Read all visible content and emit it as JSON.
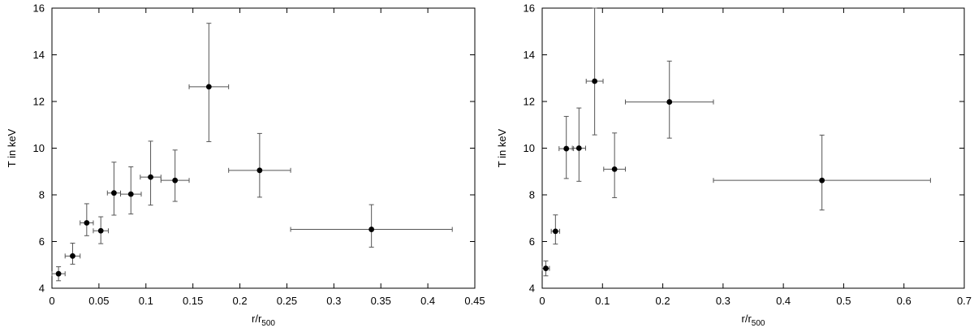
{
  "chart_data": [
    {
      "type": "scatter",
      "title": "",
      "xlabel": "r/r",
      "xlabel_sub": "500",
      "ylabel": "T in keV",
      "xlim": [
        0,
        0.45
      ],
      "ylim": [
        4,
        16
      ],
      "xticks": [
        0,
        0.05,
        0.1,
        0.15,
        0.2,
        0.25,
        0.3,
        0.35,
        0.4,
        0.45
      ],
      "xtick_labels": [
        "0",
        "0.05",
        "0.1",
        "0.15",
        "0.2",
        "0.25",
        "0.3",
        "0.35",
        "0.4",
        "0.45"
      ],
      "yticks": [
        4,
        6,
        8,
        10,
        12,
        14,
        16
      ],
      "ytick_labels": [
        "4",
        "6",
        "8",
        "10",
        "12",
        "14",
        "16"
      ],
      "grid": false,
      "points": [
        {
          "x": 0.007,
          "y": 4.62,
          "xerr": [
            0.007,
            0.007
          ],
          "yerr": [
            0.3,
            0.3
          ]
        },
        {
          "x": 0.022,
          "y": 5.38,
          "xerr": [
            0.008,
            0.008
          ],
          "yerr": [
            0.35,
            0.55
          ]
        },
        {
          "x": 0.037,
          "y": 6.8,
          "xerr": [
            0.007,
            0.007
          ],
          "yerr": [
            0.55,
            0.82
          ]
        },
        {
          "x": 0.052,
          "y": 6.46,
          "xerr": [
            0.008,
            0.008
          ],
          "yerr": [
            0.55,
            0.6
          ]
        },
        {
          "x": 0.066,
          "y": 8.08,
          "xerr": [
            0.007,
            0.007
          ],
          "yerr": [
            0.95,
            1.32
          ]
        },
        {
          "x": 0.084,
          "y": 8.03,
          "xerr": [
            0.011,
            0.011
          ],
          "yerr": [
            0.85,
            1.17
          ]
        },
        {
          "x": 0.105,
          "y": 8.76,
          "xerr": [
            0.011,
            0.011
          ],
          "yerr": [
            1.2,
            1.54
          ]
        },
        {
          "x": 0.131,
          "y": 8.62,
          "xerr": [
            0.015,
            0.015
          ],
          "yerr": [
            0.9,
            1.3
          ]
        },
        {
          "x": 0.167,
          "y": 12.63,
          "xerr": [
            0.021,
            0.021
          ],
          "yerr": [
            2.35,
            2.72
          ]
        },
        {
          "x": 0.221,
          "y": 9.05,
          "xerr": [
            0.033,
            0.033
          ],
          "yerr": [
            1.15,
            1.58
          ]
        },
        {
          "x": 0.34,
          "y": 6.52,
          "xerr": [
            0.086,
            0.086
          ],
          "yerr": [
            0.76,
            1.06
          ]
        }
      ]
    },
    {
      "type": "scatter",
      "title": "",
      "xlabel": "r/r",
      "xlabel_sub": "500",
      "ylabel": "T in keV",
      "xlim": [
        0,
        0.7
      ],
      "ylim": [
        4,
        16
      ],
      "xticks": [
        0,
        0.1,
        0.2,
        0.3,
        0.4,
        0.5,
        0.6,
        0.7
      ],
      "xtick_labels": [
        "0",
        "0.1",
        "0.2",
        "0.3",
        "0.4",
        "0.5",
        "0.6",
        "0.7"
      ],
      "yticks": [
        4,
        6,
        8,
        10,
        12,
        14,
        16
      ],
      "ytick_labels": [
        "4",
        "6",
        "8",
        "10",
        "12",
        "14",
        "16"
      ],
      "grid": false,
      "points": [
        {
          "x": 0.006,
          "y": 4.85,
          "xerr": [
            0.006,
            0.006
          ],
          "yerr": [
            0.32,
            0.32
          ]
        },
        {
          "x": 0.022,
          "y": 6.44,
          "xerr": [
            0.007,
            0.007
          ],
          "yerr": [
            0.55,
            0.7
          ]
        },
        {
          "x": 0.04,
          "y": 9.98,
          "xerr": [
            0.012,
            0.012
          ],
          "yerr": [
            1.28,
            1.38
          ]
        },
        {
          "x": 0.061,
          "y": 10.0,
          "xerr": [
            0.011,
            0.011
          ],
          "yerr": [
            1.42,
            1.72
          ]
        },
        {
          "x": 0.087,
          "y": 12.87,
          "xerr": [
            0.014,
            0.014
          ],
          "yerr": [
            2.3,
            3.13
          ]
        },
        {
          "x": 0.12,
          "y": 9.1,
          "xerr": [
            0.018,
            0.018
          ],
          "yerr": [
            1.22,
            1.55
          ]
        },
        {
          "x": 0.211,
          "y": 11.98,
          "xerr": [
            0.073,
            0.073
          ],
          "yerr": [
            1.55,
            1.75
          ]
        },
        {
          "x": 0.464,
          "y": 8.62,
          "xerr": [
            0.18,
            0.18
          ],
          "yerr": [
            1.27,
            1.94
          ]
        }
      ]
    }
  ]
}
